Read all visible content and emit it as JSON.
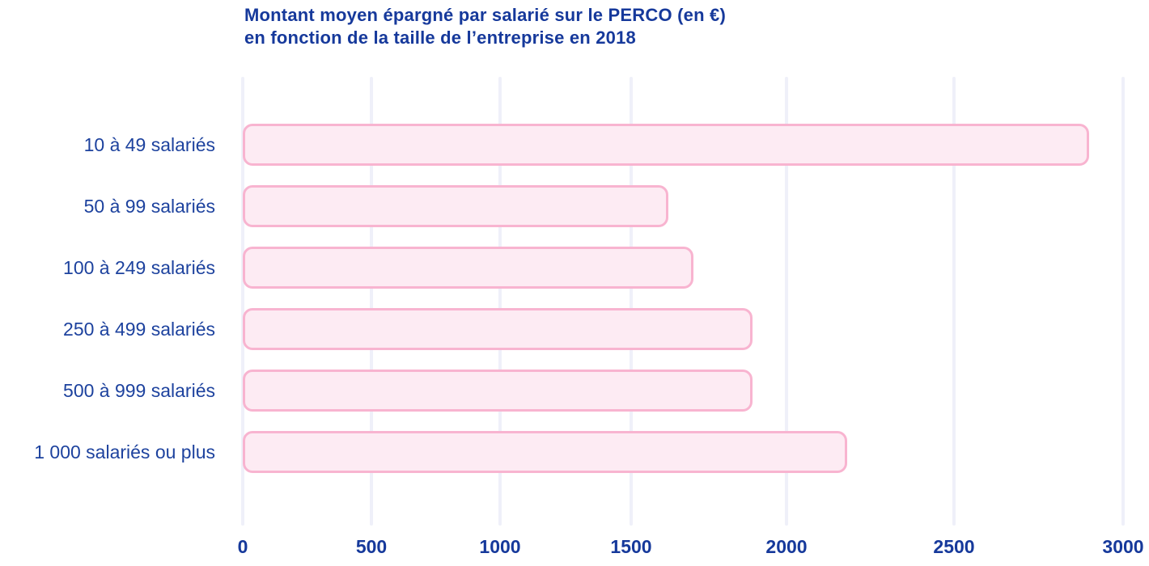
{
  "title": {
    "line1": "Montant moyen épargné par salarié sur le PERCO (en €)",
    "line2": "en fonction de la taille de l’entreprise en 2018"
  },
  "chart_data": {
    "type": "bar",
    "orientation": "horizontal",
    "title": "Montant moyen épargné par salarié sur le PERCO (en €) en fonction de la taille de l’entreprise en 2018",
    "categories": [
      "10 à 49 salariés",
      "50 à 99 salariés",
      "100 à 249 salariés",
      "250 à 499 salariés",
      "500 à 999 salariés",
      "1 000 salariés ou plus"
    ],
    "values": [
      2900,
      1620,
      1700,
      1890,
      1890,
      2180
    ],
    "x_ticks": [
      0,
      500,
      1000,
      1500,
      2000,
      2500,
      3000
    ],
    "xlim": [
      0,
      3000
    ],
    "xlabel": "",
    "ylabel": "",
    "grid": true,
    "legend": false,
    "colors": {
      "bar_fill": "#fdebf3",
      "bar_border": "#f8b4d0",
      "gridline": "#eff0f9",
      "title_text": "#16399b",
      "label_text": "#1d429e"
    }
  }
}
